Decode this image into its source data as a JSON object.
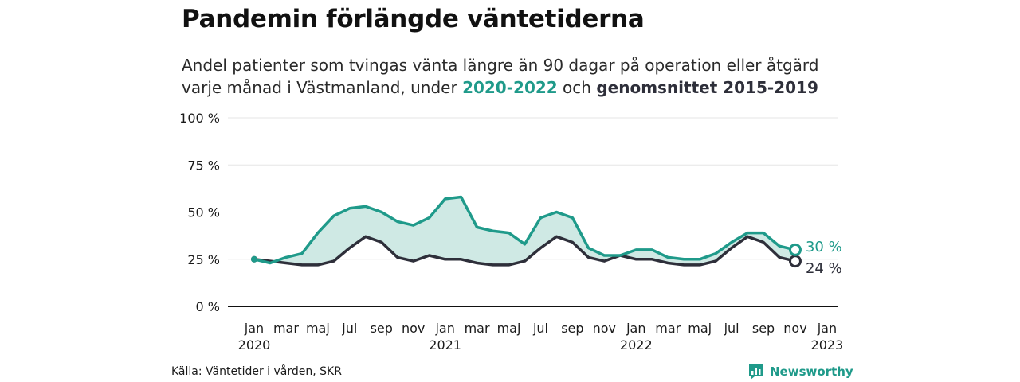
{
  "header": {
    "title": "Pandemin förlängde väntetiderna",
    "subtitle_part1": "Andel patienter som tvingas vänta längre än 90 dagar på operation eller åtgärd",
    "subtitle_part2": "varje månad i Västmanland, under ",
    "subtitle_highlight1": "2020-2022",
    "subtitle_part3": " och ",
    "subtitle_highlight2": "genomsnittet 2015-2019"
  },
  "footer": {
    "source": "Källa: Väntetider i vården, SKR",
    "brand": "Newsworthy"
  },
  "colors": {
    "main_series": "#1f9a8a",
    "average_series": "#2e2f3a",
    "band_fill": "#cfe9e4",
    "axis": "#111111",
    "grid": "#e6e6e6"
  },
  "icons": {
    "brand_logo": "bar-chart-speech-bubble-icon"
  },
  "chart_data": {
    "type": "line",
    "x_start": "2020-01",
    "y_unit": "%",
    "ylim": [
      0,
      100
    ],
    "y_ticks": [
      0,
      25,
      50,
      75,
      100
    ],
    "y_tick_labels": [
      "0 %",
      "25 %",
      "50 %",
      "75 %",
      "100 %"
    ],
    "x_ticks": [
      {
        "index": 0,
        "month": "jan",
        "year": "2020"
      },
      {
        "index": 2,
        "month": "mar",
        "year": ""
      },
      {
        "index": 4,
        "month": "maj",
        "year": ""
      },
      {
        "index": 6,
        "month": "jul",
        "year": ""
      },
      {
        "index": 8,
        "month": "sep",
        "year": ""
      },
      {
        "index": 10,
        "month": "nov",
        "year": ""
      },
      {
        "index": 12,
        "month": "jan",
        "year": "2021"
      },
      {
        "index": 14,
        "month": "mar",
        "year": ""
      },
      {
        "index": 16,
        "month": "maj",
        "year": ""
      },
      {
        "index": 18,
        "month": "jul",
        "year": ""
      },
      {
        "index": 20,
        "month": "sep",
        "year": ""
      },
      {
        "index": 22,
        "month": "nov",
        "year": ""
      },
      {
        "index": 24,
        "month": "jan",
        "year": "2022"
      },
      {
        "index": 26,
        "month": "mar",
        "year": ""
      },
      {
        "index": 28,
        "month": "maj",
        "year": ""
      },
      {
        "index": 30,
        "month": "jul",
        "year": ""
      },
      {
        "index": 32,
        "month": "sep",
        "year": ""
      },
      {
        "index": 34,
        "month": "nov",
        "year": ""
      },
      {
        "index": 36,
        "month": "jan",
        "year": "2023"
      }
    ],
    "grid": true,
    "series": [
      {
        "key": "main",
        "values": [
          25,
          23,
          26,
          28,
          39,
          48,
          52,
          53,
          50,
          45,
          43,
          47,
          57,
          58,
          42,
          40,
          39,
          33,
          47,
          50,
          47,
          31,
          27,
          27,
          30,
          30,
          26,
          25,
          25,
          28,
          34,
          39,
          39,
          32,
          30
        ],
        "end_label": "30 %"
      },
      {
        "key": "average",
        "values": [
          25,
          24,
          23,
          22,
          22,
          24,
          31,
          37,
          34,
          26,
          24,
          27,
          25,
          25,
          23,
          22,
          22,
          24,
          31,
          37,
          34,
          26,
          24,
          27,
          25,
          25,
          23,
          22,
          22,
          24,
          31,
          37,
          34,
          26,
          24
        ],
        "end_label": "24 %"
      }
    ]
  }
}
